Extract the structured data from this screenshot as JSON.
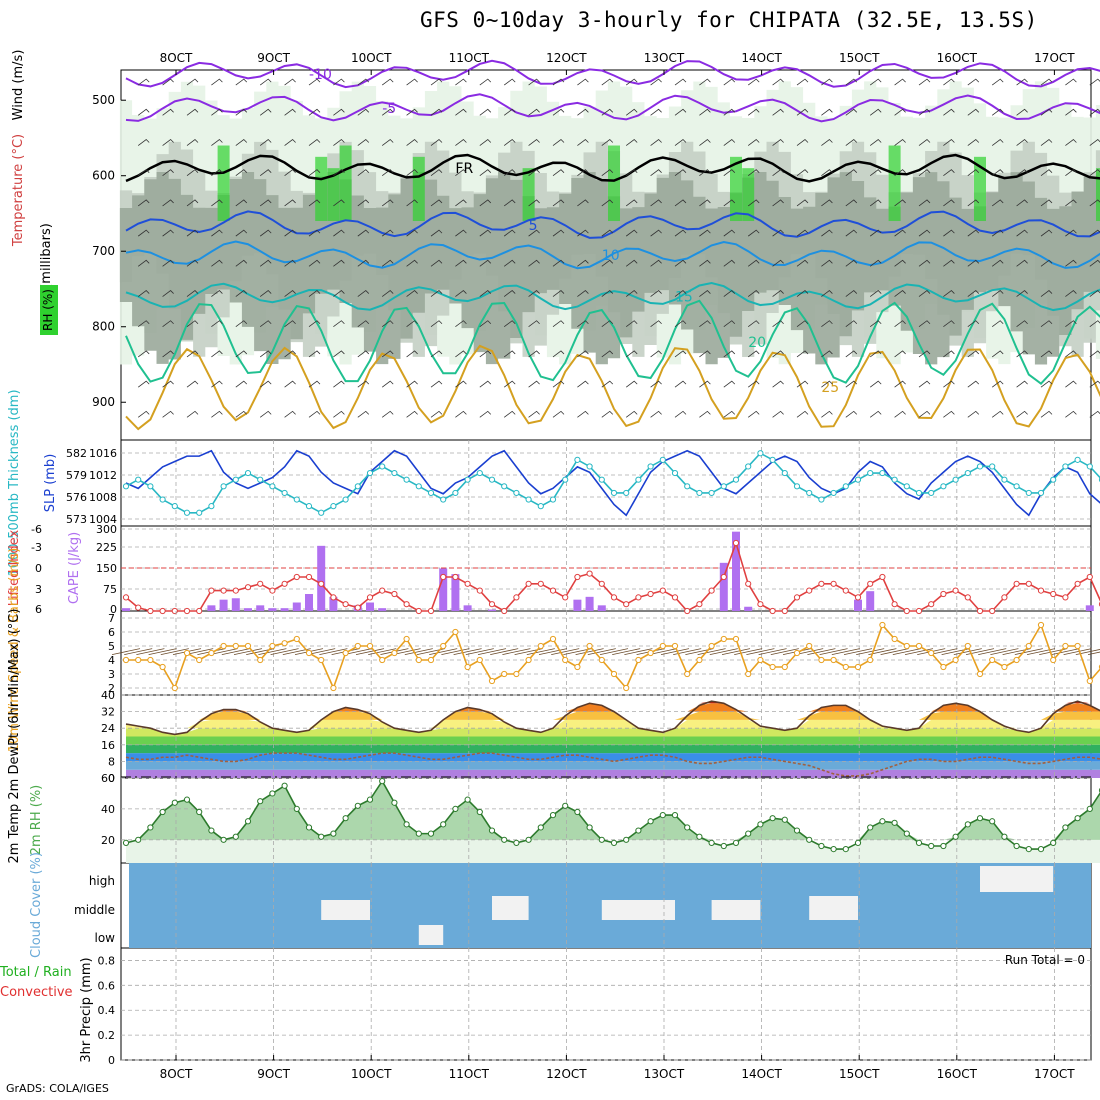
{
  "title": "GFS 0~10day 3-hourly for CHIPATA (32.5E, 13.5S)",
  "credit": "GrADS: COLA/IGES",
  "colors": {
    "rh_fill_light": "#e6f3e6",
    "rh_fill_mid": "#c4cfc4",
    "rh_fill_dark": "#9aa89a",
    "rh_green": "#2fd12f",
    "slp": "#1a3fd0",
    "thickness": "#28b8c4",
    "cape": "#b070f0",
    "lifted": "#e04040",
    "wind": "#e8a020",
    "rh2m": "#4caa4c",
    "cloud": "#6aaad8"
  },
  "chart_data": [
    {
      "id": "cross-section",
      "type": "heatmap",
      "ylabel": "(millibars)",
      "axis_labels": {
        "rh": "RH (%)",
        "temperature": "Temperature (°C)",
        "wind": "Wind (m/s)"
      },
      "ylim": [
        950,
        460
      ],
      "yticks": [
        500,
        600,
        700,
        800,
        900
      ],
      "xticks": [
        "8OCT",
        "9OCT",
        "10OCT",
        "11OCT",
        "12OCT",
        "13OCT",
        "14OCT",
        "15OCT",
        "16OCT",
        "17OCT"
      ],
      "freezing_label": "FR",
      "temperature_contours": [
        {
          "value": -10,
          "label": "-10",
          "level": 465,
          "color": "#8a2be2"
        },
        {
          "value": -5,
          "label": "-5",
          "level": 510,
          "color": "#8a2be2"
        },
        {
          "value": 0,
          "label": "FR",
          "level": 590,
          "color": "#000000"
        },
        {
          "value": 5,
          "label": "5",
          "level": 665,
          "color": "#1f4fd8"
        },
        {
          "value": 10,
          "label": "10",
          "level": 705,
          "color": "#1e90e0"
        },
        {
          "value": 15,
          "label": "15",
          "level": 760,
          "color": "#19b3b3"
        },
        {
          "value": 20,
          "label": "20",
          "level": 820,
          "color": "#20c090"
        },
        {
          "value": 25,
          "label": "25",
          "level": 880,
          "color": "#d4a020"
        }
      ]
    },
    {
      "id": "slp-thickness",
      "type": "line",
      "left_label": "1000-500mb Thickness (dm)",
      "right_label": "SLP (mb)",
      "left_ticks": [
        582,
        579,
        576,
        573
      ],
      "right_ticks": [
        1016,
        1012,
        1008,
        1004
      ],
      "series": [
        {
          "name": "SLP (mb)",
          "values": [
            1010,
            1009,
            1011,
            1013,
            1014,
            1015,
            1015,
            1016,
            1012,
            1010,
            1009,
            1010,
            1011,
            1013,
            1016,
            1015,
            1012,
            1010,
            1009,
            1008,
            1012,
            1014,
            1016,
            1015,
            1012,
            1009,
            1008,
            1010,
            1011,
            1013,
            1015,
            1016,
            1013,
            1010,
            1008,
            1009,
            1011,
            1013,
            1012,
            1009,
            1006,
            1004,
            1008,
            1012,
            1014,
            1015,
            1016,
            1015,
            1012,
            1009,
            1008,
            1010,
            1012,
            1014,
            1015,
            1014,
            1011,
            1009,
            1008,
            1009,
            1012,
            1014,
            1013,
            1010,
            1008,
            1007,
            1010,
            1012,
            1014,
            1015,
            1014,
            1012,
            1009,
            1006,
            1004,
            1008,
            1011,
            1013,
            1012,
            1008,
            1006,
            1008,
            1011
          ]
        },
        {
          "name": "Thickness (dm)",
          "values": [
            577,
            578,
            577,
            575,
            574,
            573,
            573,
            574,
            577,
            578,
            579,
            578,
            577,
            576,
            575,
            574,
            573,
            574,
            575,
            577,
            579,
            580,
            579,
            578,
            577,
            576,
            575,
            576,
            578,
            579,
            578,
            577,
            576,
            575,
            574,
            575,
            578,
            581,
            580,
            578,
            576,
            576,
            578,
            580,
            581,
            579,
            577,
            576,
            576,
            577,
            578,
            580,
            582,
            581,
            579,
            577,
            576,
            575,
            576,
            577,
            578,
            579,
            579,
            578,
            577,
            576,
            576,
            577,
            578,
            579,
            580,
            580,
            578,
            577,
            576,
            576,
            578,
            580,
            581,
            580,
            578,
            576,
            576
          ]
        }
      ]
    },
    {
      "id": "cape-lifted",
      "type": "bar",
      "left_label": "Lifted Index",
      "right_label": "CAPE (J/kg)",
      "left_ticks": [
        "-6",
        "-3",
        "0",
        "3",
        "6"
      ],
      "right_ticks": [
        "300",
        "225",
        "150",
        "75",
        "0"
      ],
      "series": [
        {
          "name": "CAPE (J/kg)",
          "values": [
            10,
            0,
            0,
            0,
            0,
            0,
            0,
            20,
            40,
            45,
            10,
            20,
            10,
            10,
            30,
            60,
            230,
            50,
            0,
            20,
            30,
            10,
            0,
            0,
            0,
            0,
            150,
            130,
            20,
            0,
            5,
            0,
            0,
            0,
            0,
            0,
            0,
            40,
            50,
            20,
            0,
            0,
            0,
            0,
            0,
            0,
            0,
            0,
            0,
            170,
            280,
            15,
            0,
            0,
            0,
            0,
            0,
            0,
            0,
            0,
            40,
            70,
            0,
            0,
            0,
            0,
            0,
            0,
            0,
            0,
            0,
            0,
            0,
            0,
            0,
            0,
            0,
            0,
            0,
            20,
            0,
            0,
            0
          ]
        },
        {
          "name": "Lifted Index",
          "values": [
            4,
            5.5,
            6,
            6,
            6,
            6,
            6,
            3,
            3,
            3,
            2.5,
            2,
            3,
            2,
            1,
            1,
            2,
            4,
            5,
            5.5,
            4,
            3,
            3.5,
            5,
            6,
            6,
            1,
            1,
            2,
            3,
            5,
            6,
            4,
            2,
            2,
            3,
            4,
            1,
            0.5,
            2,
            4,
            5,
            4,
            3.5,
            3,
            4,
            6,
            5,
            3,
            1,
            -4,
            2,
            5,
            6,
            6,
            4,
            3,
            2,
            2,
            3,
            4,
            2,
            1,
            5,
            6,
            6,
            5,
            3.5,
            3,
            4,
            6,
            6,
            4,
            2,
            2,
            3,
            3.5,
            4,
            2,
            1,
            5,
            6,
            4
          ]
        }
      ]
    },
    {
      "id": "wind10m",
      "type": "line",
      "left_label": "10m Wind Speed & Barbs (m/s)",
      "ylim": [
        1.5,
        7.5
      ],
      "yticks": [
        2,
        3,
        4,
        5,
        6,
        7
      ],
      "series": [
        {
          "name": "10m Wind Speed (m/s)",
          "values": [
            4,
            4,
            4,
            3.5,
            2,
            4.5,
            4,
            4.5,
            5,
            5,
            5,
            4,
            5,
            5.2,
            5.5,
            4.5,
            4,
            2,
            4.5,
            5,
            5,
            4,
            4.5,
            5.5,
            4,
            4,
            5,
            6,
            3.5,
            4,
            2.5,
            3,
            3,
            4,
            5,
            5.5,
            4,
            3.5,
            5,
            4,
            3,
            2,
            4,
            4.5,
            5,
            5,
            3,
            4,
            5,
            5.5,
            5.5,
            3,
            4,
            3.5,
            3.5,
            4.5,
            5,
            4,
            4,
            3.5,
            3.5,
            4,
            6.5,
            5.5,
            5,
            5,
            4.5,
            3.5,
            4,
            5,
            3,
            4,
            3.5,
            4,
            5,
            6.5,
            4,
            5,
            5,
            2.5,
            3.5,
            5.5,
            4
          ]
        }
      ]
    },
    {
      "id": "temp2m",
      "type": "area",
      "left_label": "2m Temp 2m DewPt (6hr Min/Max) (°C)",
      "ylim": [
        0,
        40
      ],
      "yticks": [
        0,
        8,
        16,
        24,
        32,
        40
      ],
      "series": [
        {
          "name": "2m Temp (°C)",
          "values": [
            26,
            25,
            24,
            22,
            21,
            22,
            27,
            31,
            33,
            33,
            31,
            27,
            24,
            23,
            22,
            23,
            28,
            32,
            34,
            33,
            31,
            27,
            24,
            23,
            22,
            23,
            28,
            32,
            34,
            33,
            31,
            27,
            24,
            23,
            22,
            24,
            30,
            34,
            36,
            35,
            32,
            28,
            24,
            23,
            22,
            24,
            30,
            35,
            37,
            36,
            33,
            29,
            25,
            24,
            23,
            24,
            30,
            34,
            35,
            35,
            32,
            28,
            25,
            24,
            23,
            24,
            31,
            35,
            36,
            35,
            32,
            28,
            25,
            23,
            22,
            24,
            31,
            35,
            37,
            35,
            32,
            28,
            26
          ]
        },
        {
          "name": "2m DewPt (°C)",
          "values": [
            10,
            9,
            9,
            10,
            10,
            11,
            10,
            9,
            8,
            8,
            9,
            11,
            12,
            12,
            12,
            11,
            10,
            9,
            9,
            10,
            11,
            12,
            12,
            11,
            10,
            9,
            9,
            10,
            11,
            12,
            12,
            11,
            10,
            9,
            9,
            10,
            11,
            11,
            10,
            9,
            8,
            9,
            10,
            11,
            11,
            10,
            8,
            7,
            7,
            8,
            9,
            10,
            10,
            9,
            8,
            7,
            6,
            4,
            2,
            1,
            1,
            2,
            4,
            6,
            8,
            9,
            9,
            8,
            8,
            9,
            10,
            10,
            9,
            8,
            7,
            7,
            8,
            9,
            10,
            10,
            9,
            9,
            9
          ]
        }
      ]
    },
    {
      "id": "rh2m",
      "type": "area",
      "left_label": "2m RH (%)",
      "ylim": [
        5,
        60
      ],
      "yticks": [
        20,
        40,
        60
      ],
      "series": [
        {
          "name": "2m RH (%)",
          "values": [
            18,
            20,
            28,
            38,
            44,
            46,
            38,
            26,
            20,
            22,
            32,
            45,
            50,
            55,
            40,
            28,
            22,
            24,
            34,
            42,
            46,
            58,
            44,
            30,
            24,
            24,
            30,
            40,
            46,
            38,
            26,
            20,
            18,
            20,
            28,
            36,
            42,
            38,
            28,
            20,
            18,
            20,
            26,
            32,
            36,
            36,
            28,
            22,
            18,
            16,
            18,
            24,
            30,
            34,
            33,
            26,
            20,
            16,
            14,
            14,
            18,
            28,
            32,
            31,
            24,
            18,
            16,
            16,
            22,
            30,
            34,
            32,
            22,
            16,
            14,
            14,
            18,
            28,
            34,
            40,
            52,
            34,
            20
          ]
        }
      ]
    },
    {
      "id": "cloud-cover",
      "type": "heatmap",
      "left_label": "Cloud Cover (%)",
      "levels": [
        "high",
        "middle",
        "low"
      ]
    },
    {
      "id": "precip",
      "type": "bar",
      "left_label": "3hr Precip (mm)",
      "legend_total": "Total / Rain",
      "legend_convective": "Convective",
      "run_total": "Run Total = 0",
      "ylim": [
        0,
        0.9
      ],
      "yticks": [
        "0",
        "0.2",
        "0.4",
        "0.6",
        "0.8"
      ],
      "xticks": [
        "8OCT",
        "9OCT",
        "10OCT",
        "11OCT",
        "12OCT",
        "13OCT",
        "14OCT",
        "15OCT",
        "16OCT",
        "17OCT"
      ],
      "values": []
    }
  ]
}
